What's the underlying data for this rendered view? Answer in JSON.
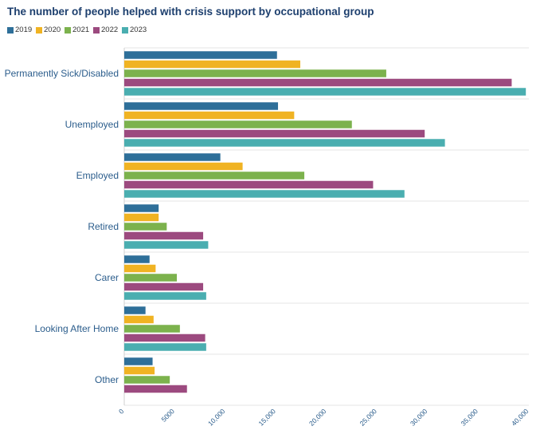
{
  "chart_data": {
    "type": "bar",
    "orientation": "horizontal",
    "title": "The number of people helped with crisis support by occupational group",
    "xlabel": "",
    "ylabel": "",
    "xlim": [
      0,
      40000
    ],
    "ticks": [
      0,
      5000,
      10000,
      15000,
      20000,
      25000,
      30000,
      35000,
      40000
    ],
    "tick_labels": [
      "0",
      "5000",
      "10,000",
      "15,000",
      "20,000",
      "25,000",
      "30,000",
      "35,000",
      "40,000"
    ],
    "grid": true,
    "legend_position": "top-left",
    "categories": [
      "Permanently Sick/Disabled",
      "Unemployed",
      "Employed",
      "Retired",
      "Carer",
      "Looking After Home",
      "Other"
    ],
    "series": [
      {
        "name": "2019",
        "color": "#2e6f99",
        "values": [
          15100,
          15200,
          9500,
          3400,
          2500,
          2100,
          2800
        ]
      },
      {
        "name": "2020",
        "color": "#f0b323",
        "values": [
          17400,
          16800,
          11700,
          3400,
          3100,
          2900,
          3000
        ]
      },
      {
        "name": "2021",
        "color": "#7cb24d",
        "values": [
          25900,
          22500,
          17800,
          4200,
          5200,
          5500,
          4500
        ]
      },
      {
        "name": "2022",
        "color": "#9c4a7f",
        "values": [
          38300,
          29700,
          24600,
          7800,
          7800,
          8000,
          6200
        ]
      },
      {
        "name": "2023",
        "color": "#4aaeb0",
        "values": [
          39700,
          31700,
          27700,
          8300,
          8100,
          8100,
          null
        ]
      }
    ]
  }
}
